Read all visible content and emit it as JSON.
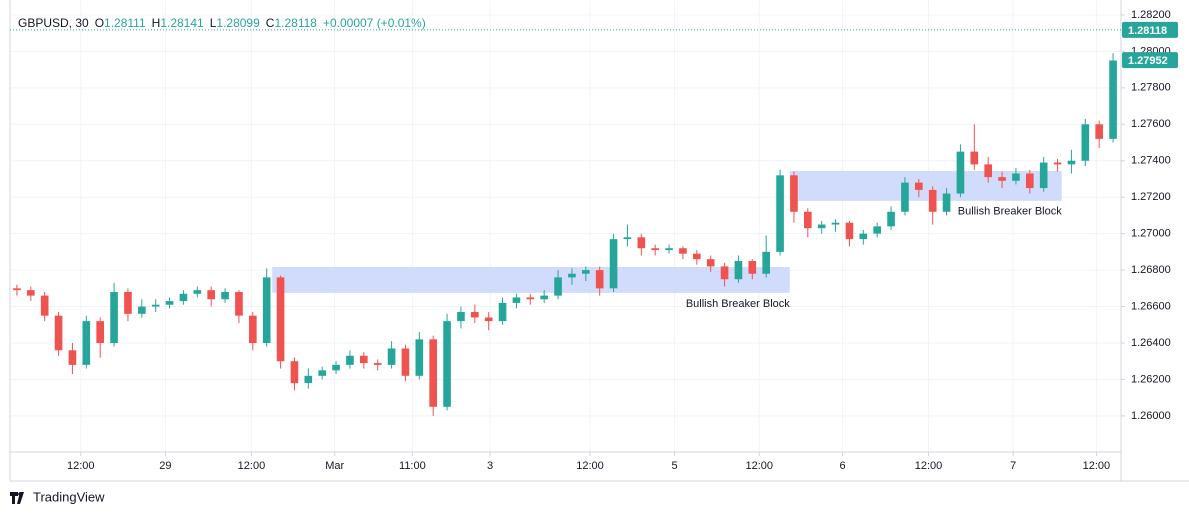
{
  "header": {
    "symbol": "GBPUSD, 30",
    "ohlc": [
      {
        "label": "O",
        "value": "1.28111"
      },
      {
        "label": "H",
        "value": "1.28141"
      },
      {
        "label": "L",
        "value": "1.28099"
      },
      {
        "label": "C",
        "value": "1.28118"
      }
    ],
    "change": "+0.00007 (+0.01%)"
  },
  "footer": {
    "brand": "TradingView"
  },
  "chart_data": {
    "type": "candlestick",
    "up_color": "#26a69a",
    "down_color": "#ef5350",
    "grid": true,
    "xlim": [
      -0.5,
      79.5
    ],
    "xticks": [
      {
        "value": 4.6,
        "label": "12:00"
      },
      {
        "value": 10.7,
        "label": "29"
      },
      {
        "value": 16.9,
        "label": "12:00"
      },
      {
        "value": 22.9,
        "label": "Mar"
      },
      {
        "value": 28.5,
        "label": "11:00"
      },
      {
        "value": 34.1,
        "label": "3"
      },
      {
        "value": 41.3,
        "label": "12:00"
      },
      {
        "value": 47.4,
        "label": "5"
      },
      {
        "value": 53.5,
        "label": "12:00"
      },
      {
        "value": 59.5,
        "label": "6"
      },
      {
        "value": 65.7,
        "label": "12:00"
      },
      {
        "value": 71.8,
        "label": "7"
      },
      {
        "value": 77.8,
        "label": "12:00"
      }
    ],
    "ylim": [
      1.25802,
      1.28238
    ],
    "yticks": [
      {
        "value": 1.282,
        "label": "1.28200"
      },
      {
        "value": 1.28,
        "label": "1.28000"
      },
      {
        "value": 1.278,
        "label": "1.27800"
      },
      {
        "value": 1.276,
        "label": "1.27600"
      },
      {
        "value": 1.274,
        "label": "1.27400"
      },
      {
        "value": 1.272,
        "label": "1.27200"
      },
      {
        "value": 1.27,
        "label": "1.27000"
      },
      {
        "value": 1.268,
        "label": "1.26800"
      },
      {
        "value": 1.266,
        "label": "1.26600"
      },
      {
        "value": 1.264,
        "label": "1.26400"
      },
      {
        "value": 1.262,
        "label": "1.26200"
      },
      {
        "value": 1.26,
        "label": "1.26000"
      }
    ],
    "price_lines": [
      {
        "value": 1.28118,
        "color": "#26a69a",
        "dotted": true
      },
      {
        "value": 1.27952,
        "color": "#26a69a",
        "dotted": false
      }
    ],
    "zones": [
      {
        "label": "Bullish Breaker Block",
        "color": "#d1dbfb",
        "x": [
          18.4,
          55.7
        ],
        "y": [
          1.26817,
          1.26675
        ]
      },
      {
        "label": "Bullish Breaker Block",
        "color": "#d1dbfb",
        "x": [
          55.7,
          75.3
        ],
        "y": [
          1.27344,
          1.2718
        ]
      }
    ],
    "open": [
      1.267,
      1.2669,
      1.2666,
      1.2655,
      1.2636,
      1.2628,
      1.2652,
      1.264,
      1.2668,
      1.2656,
      1.266,
      1.2661,
      1.2663,
      1.2667,
      1.2669,
      1.2664,
      1.2668,
      1.2655,
      1.264,
      1.2676,
      1.263,
      1.2618,
      1.2622,
      1.2625,
      1.2628,
      1.2633,
      1.2629,
      1.2628,
      1.2637,
      1.2622,
      1.2642,
      1.2605,
      1.2652,
      1.2657,
      1.2654,
      1.2652,
      1.2662,
      1.2665,
      1.2664,
      1.2666,
      1.2676,
      1.2678,
      1.268,
      1.267,
      1.2697,
      1.2698,
      1.2692,
      1.2691,
      1.2692,
      1.2689,
      1.2686,
      1.2682,
      1.2675,
      1.2685,
      1.2678,
      1.269,
      1.2732,
      1.2712,
      1.2703,
      1.2705,
      1.2706,
      1.2697,
      1.27,
      1.2704,
      1.2712,
      1.2728,
      1.2724,
      1.2712,
      1.2722,
      1.2745,
      1.2738,
      1.2731,
      1.2729,
      1.2733,
      1.2725,
      1.2739,
      1.2738,
      1.274,
      1.276,
      1.2752
    ],
    "high": [
      1.2672,
      1.2671,
      1.2668,
      1.2657,
      1.264,
      1.2655,
      1.2654,
      1.2673,
      1.267,
      1.2664,
      1.2664,
      1.2665,
      1.2669,
      1.2671,
      1.2671,
      1.267,
      1.2669,
      1.2657,
      1.2681,
      1.2677,
      1.2632,
      1.2626,
      1.2627,
      1.263,
      1.2636,
      1.2635,
      1.2631,
      1.2641,
      1.2639,
      1.2646,
      1.2644,
      1.2656,
      1.266,
      1.2661,
      1.2657,
      1.2665,
      1.2667,
      1.2667,
      1.2669,
      1.268,
      1.2681,
      1.2682,
      1.2682,
      1.27,
      1.2705,
      1.27,
      1.2694,
      1.2694,
      1.2693,
      1.2691,
      1.2688,
      1.2684,
      1.2688,
      1.2686,
      1.2699,
      1.2735,
      1.2734,
      1.2714,
      1.2707,
      1.2708,
      1.2707,
      1.2702,
      1.2706,
      1.2715,
      1.2731,
      1.273,
      1.2726,
      1.2725,
      1.2749,
      1.276,
      1.2742,
      1.2734,
      1.2736,
      1.2735,
      1.2742,
      1.2741,
      1.2746,
      1.2763,
      1.2762,
      1.2799
    ],
    "low": [
      1.2666,
      1.2663,
      1.2652,
      1.2633,
      1.2623,
      1.2626,
      1.2632,
      1.2638,
      1.2652,
      1.2654,
      1.2657,
      1.2659,
      1.2661,
      1.2665,
      1.266,
      1.2662,
      1.2651,
      1.2636,
      1.2638,
      1.2626,
      1.2614,
      1.2615,
      1.262,
      1.2623,
      1.2626,
      1.2626,
      1.2625,
      1.2626,
      1.2619,
      1.262,
      1.26,
      1.2603,
      1.2648,
      1.2651,
      1.2647,
      1.265,
      1.2659,
      1.2661,
      1.2662,
      1.2664,
      1.2672,
      1.2674,
      1.2666,
      1.2668,
      1.2693,
      1.2688,
      1.2688,
      1.2689,
      1.2686,
      1.2683,
      1.2679,
      1.2671,
      1.2673,
      1.2675,
      1.2676,
      1.2688,
      1.2706,
      1.2698,
      1.27,
      1.2701,
      1.2693,
      1.2694,
      1.2698,
      1.2702,
      1.271,
      1.272,
      1.2705,
      1.271,
      1.272,
      1.2735,
      1.2728,
      1.2725,
      1.2727,
      1.2722,
      1.2723,
      1.2734,
      1.2733,
      1.2737,
      1.2747,
      1.275
    ],
    "close": [
      1.2669,
      1.2666,
      1.2655,
      1.2636,
      1.2628,
      1.2652,
      1.264,
      1.2668,
      1.2656,
      1.266,
      1.2661,
      1.2663,
      1.2667,
      1.2669,
      1.2664,
      1.2668,
      1.2655,
      1.264,
      1.2676,
      1.263,
      1.2618,
      1.2622,
      1.2625,
      1.2628,
      1.2633,
      1.2629,
      1.2628,
      1.2637,
      1.2622,
      1.2642,
      1.2605,
      1.2652,
      1.2657,
      1.2654,
      1.2652,
      1.2662,
      1.2665,
      1.2664,
      1.2666,
      1.2676,
      1.2678,
      1.268,
      1.267,
      1.2697,
      1.2698,
      1.2692,
      1.2691,
      1.2692,
      1.2689,
      1.2686,
      1.2682,
      1.2675,
      1.2685,
      1.2678,
      1.269,
      1.2732,
      1.2712,
      1.2703,
      1.2705,
      1.2706,
      1.2697,
      1.27,
      1.2704,
      1.2712,
      1.2728,
      1.2724,
      1.2712,
      1.2722,
      1.2745,
      1.2738,
      1.2731,
      1.2729,
      1.2733,
      1.2725,
      1.2739,
      1.2738,
      1.274,
      1.276,
      1.2752,
      1.2795
    ]
  }
}
